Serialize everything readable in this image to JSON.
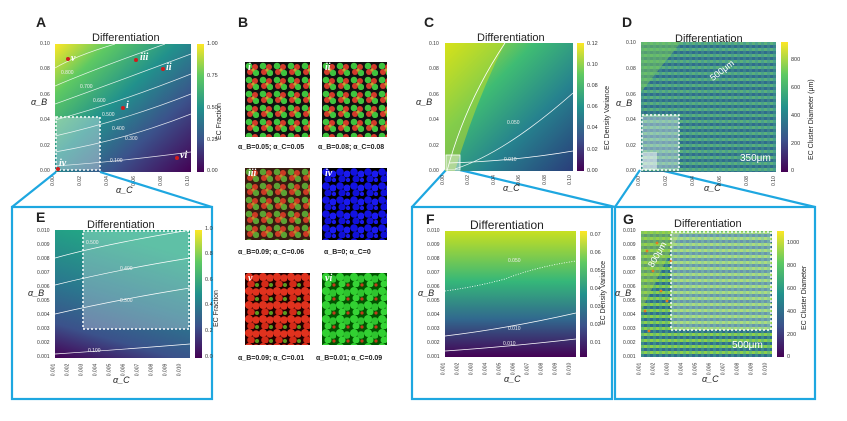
{
  "panels": {
    "A": {
      "letter": "A",
      "title": "Differentiation",
      "xlabel": "α_C",
      "ylabel": "α_B",
      "yticks": [
        "0.10",
        "0.08",
        "0.06",
        "0.04",
        "0.02",
        "0.00"
      ],
      "xticks": [
        "0.00",
        "0.02",
        "0.04",
        "0.06",
        "0.08",
        "0.10"
      ],
      "cbar_label": "EC Fraction",
      "cbar_ticks": [
        "1.00",
        "0.75",
        "0.50",
        "0.25",
        "0.00"
      ],
      "contours": [
        "0.100",
        "0.300",
        "0.400",
        "0.500",
        "0.600",
        "0.700",
        "0.800"
      ],
      "regions": [
        "v",
        "iii",
        "ii",
        "i",
        "vi",
        "iv"
      ]
    },
    "B": {
      "letter": "B",
      "captions": [
        "α_B=0.05; α_C=0.05",
        "α_B=0.08; α_C=0.08",
        "α_B=0.09; α_C=0.06",
        "α_B=0; α_C=0",
        "α_B=0.09; α_C=0.01",
        "α_B=0.01; α_C=0.09"
      ],
      "tiles": [
        "i",
        "ii",
        "iii",
        "iv",
        "v",
        "vi"
      ]
    },
    "C": {
      "letter": "C",
      "title": "Differentiation",
      "xlabel": "α_C",
      "ylabel": "α_B",
      "yticks": [
        "0.10",
        "0.08",
        "0.06",
        "0.04",
        "0.02",
        "0.00"
      ],
      "xticks": [
        "0.00",
        "0.02",
        "0.04",
        "0.06",
        "0.08",
        "0.10"
      ],
      "cbar_label": "EC Density Variance",
      "cbar_ticks": [
        "0.12",
        "0.10",
        "0.08",
        "0.06",
        "0.04",
        "0.02",
        "0.00"
      ],
      "contours": [
        "0.050",
        "0.010"
      ]
    },
    "D": {
      "letter": "D",
      "title": "Differentiation",
      "xlabel": "α_C",
      "ylabel": "α_B",
      "yticks": [
        "0.10",
        "0.08",
        "0.06",
        "0.04",
        "0.02",
        "0.00"
      ],
      "xticks": [
        "0.00",
        "0.02",
        "0.04",
        "0.06",
        "0.08",
        "0.10"
      ],
      "cbar_label": "EC Cluster Diameter (μm)",
      "cbar_ticks": [
        "800",
        "600",
        "400",
        "200",
        "0"
      ],
      "annotation": "500μm",
      "scale_text": "350μm"
    },
    "E": {
      "letter": "E",
      "title": "Differentiation",
      "xlabel": "α_C",
      "ylabel": "α_B",
      "yticks": [
        "0.010",
        "0.009",
        "0.008",
        "0.007",
        "0.006",
        "0.005",
        "0.004",
        "0.003",
        "0.002",
        "0.001"
      ],
      "xticks": [
        "0.001",
        "0.002",
        "0.003",
        "0.004",
        "0.005",
        "0.006",
        "0.007",
        "0.008",
        "0.009",
        "0.010"
      ],
      "cbar_label": "EC Fraction",
      "cbar_ticks": [
        "1.0",
        "0.8",
        "0.6",
        "0.4",
        "0.2",
        "0.0"
      ],
      "contours": [
        "0.500",
        "0.400",
        "0.300",
        "0.100"
      ]
    },
    "F": {
      "letter": "F",
      "title": "Differentiation",
      "xlabel": "α_C",
      "ylabel": "α_B",
      "yticks": [
        "0.010",
        "0.009",
        "0.008",
        "0.007",
        "0.006",
        "0.005",
        "0.004",
        "0.003",
        "0.002",
        "0.001"
      ],
      "xticks": [
        "0.001",
        "0.002",
        "0.003",
        "0.004",
        "0.005",
        "0.006",
        "0.007",
        "0.008",
        "0.009",
        "0.010"
      ],
      "cbar_label": "EC Density Variance",
      "cbar_ticks": [
        "0.07",
        "0.06",
        "0.05",
        "0.04",
        "0.03",
        "0.02",
        "0.01"
      ],
      "contours": [
        "0.050",
        "0.010",
        "0.010"
      ]
    },
    "G": {
      "letter": "G",
      "title": "Differentiation",
      "xlabel": "α_C",
      "ylabel": "α_B",
      "yticks": [
        "0.010",
        "0.009",
        "0.008",
        "0.007",
        "0.006",
        "0.005",
        "0.004",
        "0.003",
        "0.002",
        "0.001"
      ],
      "xticks": [
        "0.001",
        "0.002",
        "0.003",
        "0.004",
        "0.005",
        "0.006",
        "0.007",
        "0.008",
        "0.009",
        "0.010"
      ],
      "cbar_label": "EC Cluster Diameter",
      "cbar_ticks": [
        "1000",
        "800",
        "600",
        "400",
        "200",
        "0"
      ],
      "annotation": "800μm",
      "scale_text": "500μm"
    }
  },
  "chart_data": [
    {
      "type": "heatmap",
      "panel": "A",
      "title": "Differentiation",
      "xlabel": "α_C",
      "ylabel": "α_B",
      "xlim": [
        0,
        0.1
      ],
      "ylim": [
        0,
        0.1
      ],
      "colorbar": "EC Fraction",
      "clim": [
        0,
        1
      ],
      "contour_levels": [
        0.1,
        0.3,
        0.4,
        0.5,
        0.6,
        0.7,
        0.8
      ],
      "points": [
        {
          "label": "i",
          "x": 0.05,
          "y": 0.05
        },
        {
          "label": "ii",
          "x": 0.08,
          "y": 0.08
        },
        {
          "label": "iii",
          "x": 0.06,
          "y": 0.09
        },
        {
          "label": "iv",
          "x": 0,
          "y": 0
        },
        {
          "label": "v",
          "x": 0.01,
          "y": 0.09
        },
        {
          "label": "vi",
          "x": 0.09,
          "y": 0.01
        }
      ]
    },
    {
      "type": "heatmap",
      "panel": "C",
      "title": "Differentiation",
      "xlabel": "α_C",
      "ylabel": "α_B",
      "xlim": [
        0,
        0.1
      ],
      "ylim": [
        0,
        0.1
      ],
      "colorbar": "EC Density Variance",
      "clim": [
        0,
        0.12
      ],
      "contour_levels": [
        0.01,
        0.05
      ]
    },
    {
      "type": "heatmap",
      "panel": "D",
      "title": "Differentiation",
      "xlabel": "α_C",
      "ylabel": "α_B",
      "xlim": [
        0,
        0.1
      ],
      "ylim": [
        0,
        0.1
      ],
      "colorbar": "EC Cluster Diameter (μm)",
      "clim": [
        0,
        850
      ]
    },
    {
      "type": "heatmap",
      "panel": "E",
      "title": "Differentiation",
      "xlabel": "α_C",
      "ylabel": "α_B",
      "xlim": [
        0.001,
        0.01
      ],
      "ylim": [
        0.001,
        0.01
      ],
      "colorbar": "EC Fraction",
      "clim": [
        0,
        1
      ],
      "contour_levels": [
        0.1,
        0.3,
        0.4,
        0.5
      ]
    },
    {
      "type": "heatmap",
      "panel": "F",
      "title": "Differentiation",
      "xlabel": "α_C",
      "ylabel": "α_B",
      "xlim": [
        0.001,
        0.01
      ],
      "ylim": [
        0.001,
        0.01
      ],
      "colorbar": "EC Density Variance",
      "clim": [
        0.005,
        0.075
      ],
      "contour_levels": [
        0.01,
        0.05
      ]
    },
    {
      "type": "heatmap",
      "panel": "G",
      "title": "Differentiation",
      "xlabel": "α_C",
      "ylabel": "α_B",
      "xlim": [
        0.001,
        0.01
      ],
      "ylim": [
        0.001,
        0.01
      ],
      "colorbar": "EC Cluster Diameter",
      "clim": [
        0,
        1100
      ]
    }
  ],
  "colors": {
    "accent": "#1ea7e0",
    "viridis_low": "#440154",
    "viridis_mid": "#21918c",
    "viridis_high": "#fde725"
  }
}
